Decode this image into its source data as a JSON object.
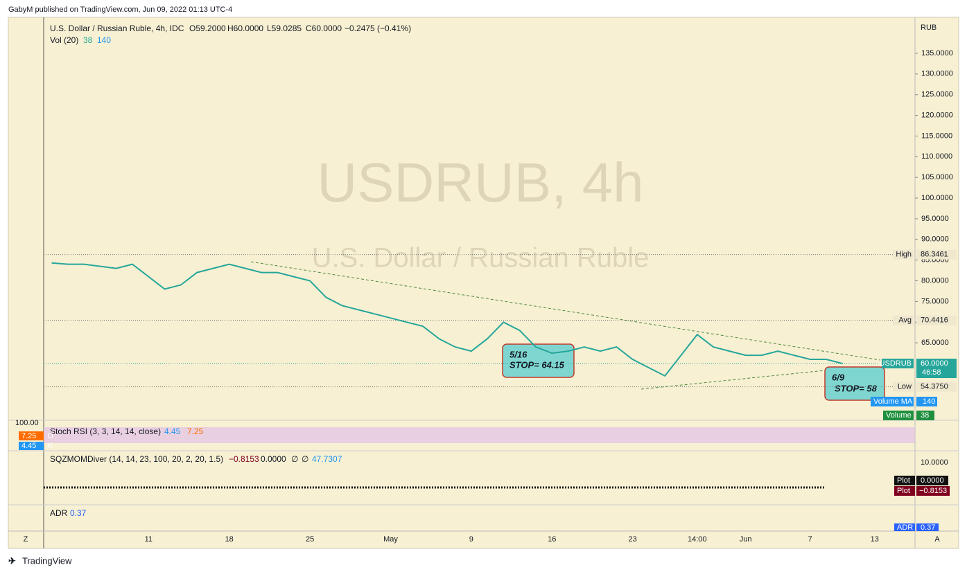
{
  "header": {
    "published": "GabyM published on TradingView.com, Jun 09, 2022 01:13 UTC-4",
    "brand": "TradingView"
  },
  "legend": {
    "symbol": "U.S. Dollar / Russian Ruble, 4h, IDC",
    "open": "O59.2000",
    "high": "H60.0000",
    "low": "L59.0285",
    "close": "C60.0000",
    "change": "−0.2475 (−0.41%)",
    "volume": "Vol (20)",
    "volume_value": "38",
    "volume_ma": "140"
  },
  "watermark": {
    "symbol": "USDRUB, 4h",
    "name": "U.S. Dollar / Russian Ruble"
  },
  "chart_data": {
    "type": "line",
    "currency": "RUB",
    "color": "#26a69a",
    "categories": [
      null,
      null,
      null,
      null,
      null,
      null,
      "11",
      null,
      null,
      null,
      null,
      "18",
      null,
      null,
      null,
      null,
      "25",
      null,
      null,
      null,
      null,
      "May",
      null,
      null,
      null,
      null,
      "9",
      null,
      null,
      null,
      null,
      "16",
      null,
      null,
      null,
      null,
      "23",
      null,
      null,
      null,
      "14:00",
      null,
      null,
      "Jun",
      null,
      null,
      null,
      "7",
      null,
      null,
      null,
      "13",
      null,
      null
    ],
    "values": [
      84.3,
      84,
      84,
      83.5,
      83,
      84,
      81,
      78,
      79,
      82,
      83,
      84,
      83,
      82,
      82,
      81,
      80,
      76,
      74,
      73,
      72,
      71,
      70,
      69,
      66,
      64,
      63,
      66,
      70,
      68,
      64,
      62.5,
      63,
      64,
      63,
      64,
      61,
      59,
      57,
      62,
      67,
      64,
      63,
      62,
      62,
      63,
      62,
      61,
      61,
      60,
      null,
      null,
      null,
      null
    ],
    "ylim": [
      46.61,
      143.7
    ],
    "yticks": [
      {
        "value": 65,
        "label": "65.0000"
      },
      {
        "value": 70,
        "label": "70.0000"
      },
      {
        "value": 75,
        "label": "75.0000"
      },
      {
        "value": 80,
        "label": "80.0000"
      },
      {
        "value": 85,
        "label": "85.0000"
      },
      {
        "value": 90,
        "label": "90.0000"
      },
      {
        "value": 95,
        "label": "95.0000"
      },
      {
        "value": 100,
        "label": "100.0000"
      },
      {
        "value": 105,
        "label": "105.0000"
      },
      {
        "value": 110,
        "label": "110.0000"
      },
      {
        "value": 115,
        "label": "115.0000"
      },
      {
        "value": 120,
        "label": "120.0000"
      },
      {
        "value": 125,
        "label": "125.0000"
      },
      {
        "value": 130,
        "label": "130.0000"
      },
      {
        "value": 135,
        "label": "135.0000"
      }
    ],
    "price_lines": [
      {
        "name": "High",
        "value": 86.3461,
        "label": "86.3461"
      },
      {
        "name": "Avg",
        "value": 70.4416,
        "label": "70.4416"
      },
      {
        "name": "Low",
        "value": 54.375,
        "label": "54.3750"
      },
      {
        "name": "USDRUB",
        "value": 60,
        "label": "60.0000"
      }
    ],
    "countdown": "46:58",
    "annotations": [
      {
        "date": "5/16",
        "text": "STOP= 64.15"
      },
      {
        "date": "6/9",
        "text": "STOP= 58"
      }
    ]
  },
  "volume_labels": [
    {
      "name": "Volume MA",
      "value": "140"
    },
    {
      "name": "Volume",
      "value": "38"
    }
  ],
  "stoch_rsi": {
    "title": "Stoch RSI (3, 3, 14, 14, close)",
    "k": "4.45",
    "d": "7.25",
    "scale": "100.00",
    "d_tag": "D",
    "k_tag": "K"
  },
  "sqzmom": {
    "title": "SQZMOMDiver (14, 14, 23, 100, 20, 2, 20, 1.5)",
    "values": [
      "−0.8153",
      "0.0000",
      "∅",
      "∅",
      "47.7307"
    ],
    "scale": "10.0000",
    "plots": [
      {
        "name": "Plot",
        "value": "0.0000"
      },
      {
        "name": "Plot",
        "value": "−0.8153"
      }
    ]
  },
  "adr": {
    "title": "ADR",
    "value": "0.37"
  },
  "axis_buttons": {
    "left": "Z",
    "right": "A"
  }
}
